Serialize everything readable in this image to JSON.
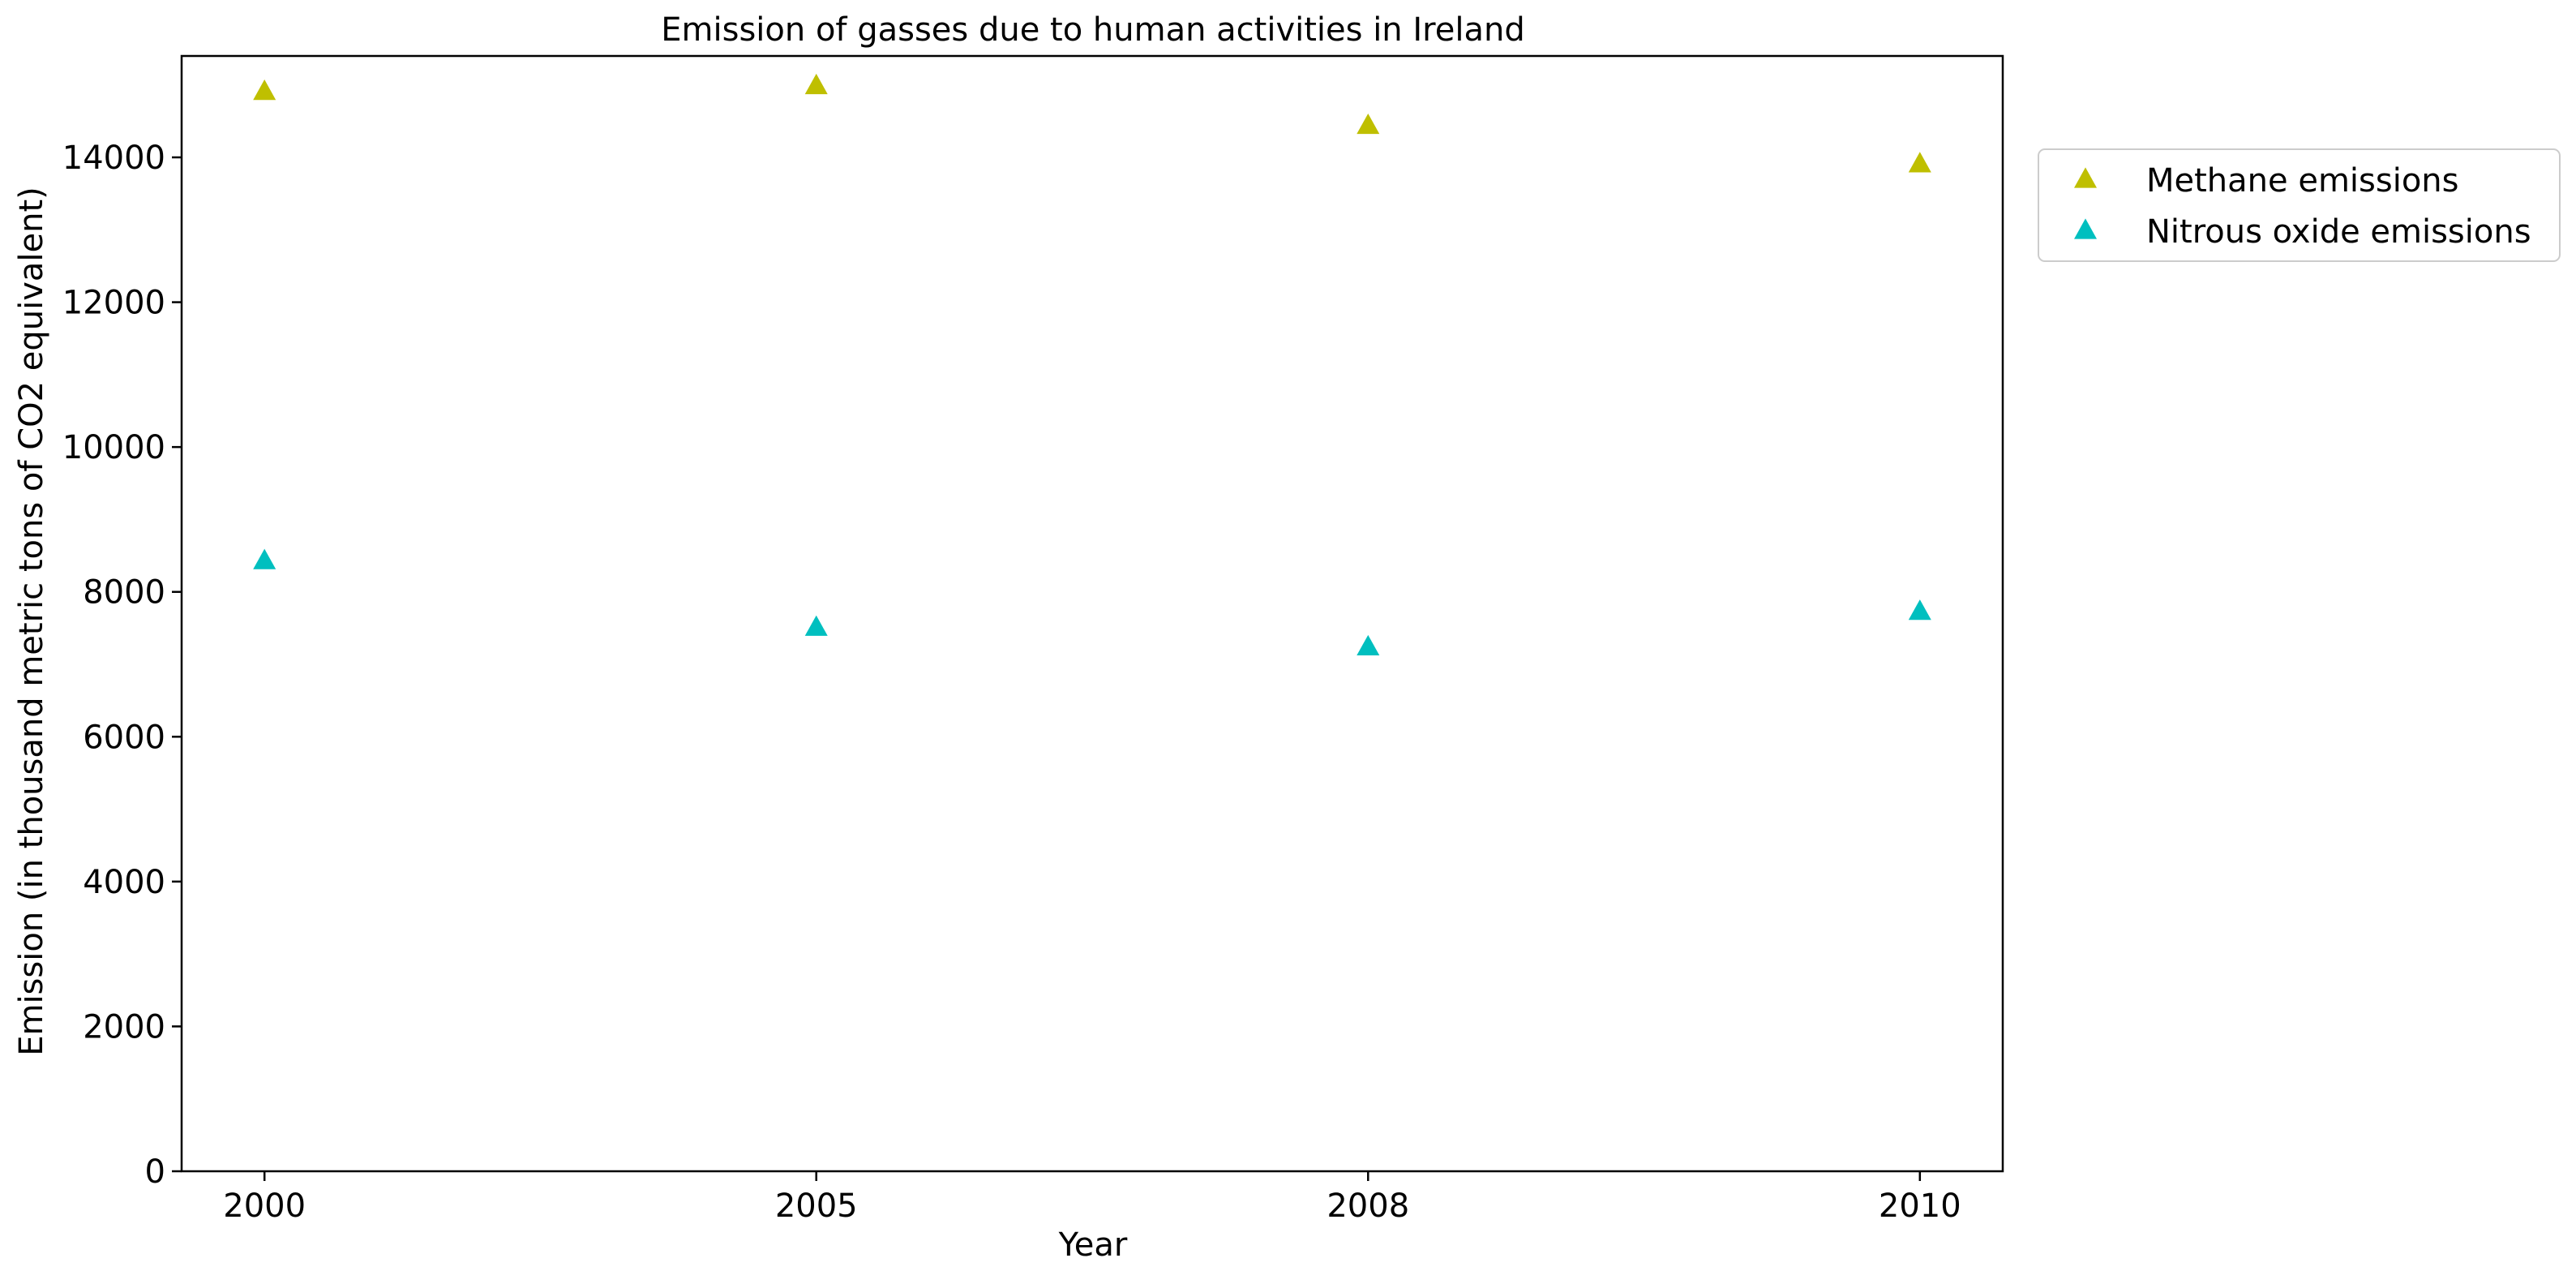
{
  "colors": {
    "methane": "#bfbf00",
    "nitrous": "#00bfbf",
    "axis": "#000000",
    "background": "#ffffff"
  },
  "chart_data": {
    "type": "scatter",
    "title": "Emission of gasses due to human activities in Ireland",
    "xlabel": "Year",
    "ylabel": "Emission (in thousand metric tons of CO2 equivalent)",
    "categories": [
      "2000",
      "2005",
      "2008",
      "2010"
    ],
    "ylim": [
      0,
      15400
    ],
    "yticks": [
      0,
      2000,
      4000,
      6000,
      8000,
      10000,
      12000,
      14000
    ],
    "grid": false,
    "legend_position": "outside-right-top",
    "marker": "triangle",
    "series": [
      {
        "name": "Methane emissions",
        "color": "#bfbf00",
        "values": [
          14900,
          14980,
          14430,
          13900
        ]
      },
      {
        "name": "Nitrous oxide emissions",
        "color": "#00bfbf",
        "values": [
          8420,
          7500,
          7230,
          7720
        ]
      }
    ]
  }
}
